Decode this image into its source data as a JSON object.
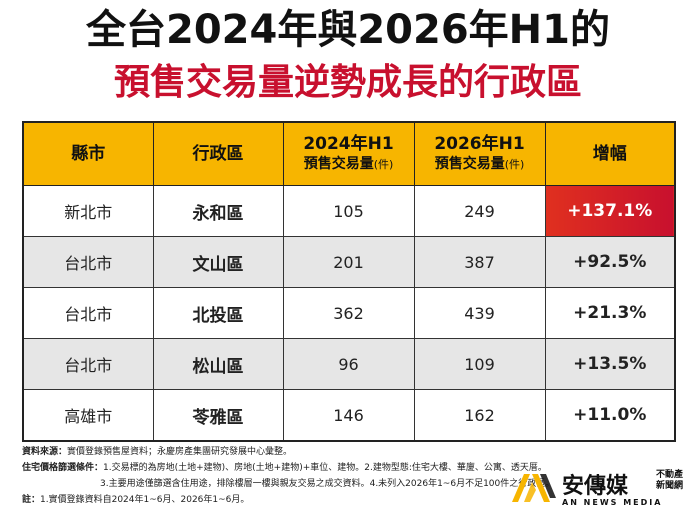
{
  "title_line1": "全台2024年與2026年H1的",
  "title_line2": "預售交易量逆勢成長的行政區",
  "table": {
    "headers": {
      "county": "縣市",
      "district": "行政區",
      "y2024_main": "2024年H1",
      "y2024_sub": "預售交易量",
      "y2024_unit": "(件)",
      "y2026_main": "2026年H1",
      "y2026_sub": "預售交易量",
      "y2026_unit": "(件)",
      "increase": "增幅"
    },
    "rows": [
      {
        "county": "新北市",
        "district": "永和區",
        "v2024": "105",
        "v2026": "249",
        "increase": "+137.1%"
      },
      {
        "county": "台北市",
        "district": "文山區",
        "v2024": "201",
        "v2026": "387",
        "increase": "+92.5%"
      },
      {
        "county": "台北市",
        "district": "北投區",
        "v2024": "362",
        "v2026": "439",
        "increase": "+21.3%"
      },
      {
        "county": "台北市",
        "district": "松山區",
        "v2024": "96",
        "v2026": "109",
        "increase": "+13.5%"
      },
      {
        "county": "高雄市",
        "district": "苓雅區",
        "v2024": "146",
        "v2026": "162",
        "increase": "+11.0%"
      }
    ],
    "highlight_color": "#d9251c",
    "header_color": "#f7b500"
  },
  "notes": {
    "source_label": "資料來源：",
    "source_text": "實價登錄預售屋資料；永慶房產集團研究發展中心彙整。",
    "criteria_label": "住宅價格篩選條件：",
    "criteria_line1": "1.交易標的為房地(土地+建物)、房地(土地+建物)+車位、建物。2.建物型態:住宅大樓、華廈、公寓、透天厝。",
    "criteria_line2": "3.主要用途僅篩選含住用途，排除樓層一樓與親友交易之成交資料。4.未列入2026年1~6月不足100件之行政區。",
    "note_label": "註：",
    "note_text": "1.實價登錄資料自2024年1~6月、2026年1~6月。"
  },
  "logo": {
    "brand": "安傳媒",
    "brand_sub": "不動產 新聞網",
    "english": "AN NEWS MEDIA"
  }
}
